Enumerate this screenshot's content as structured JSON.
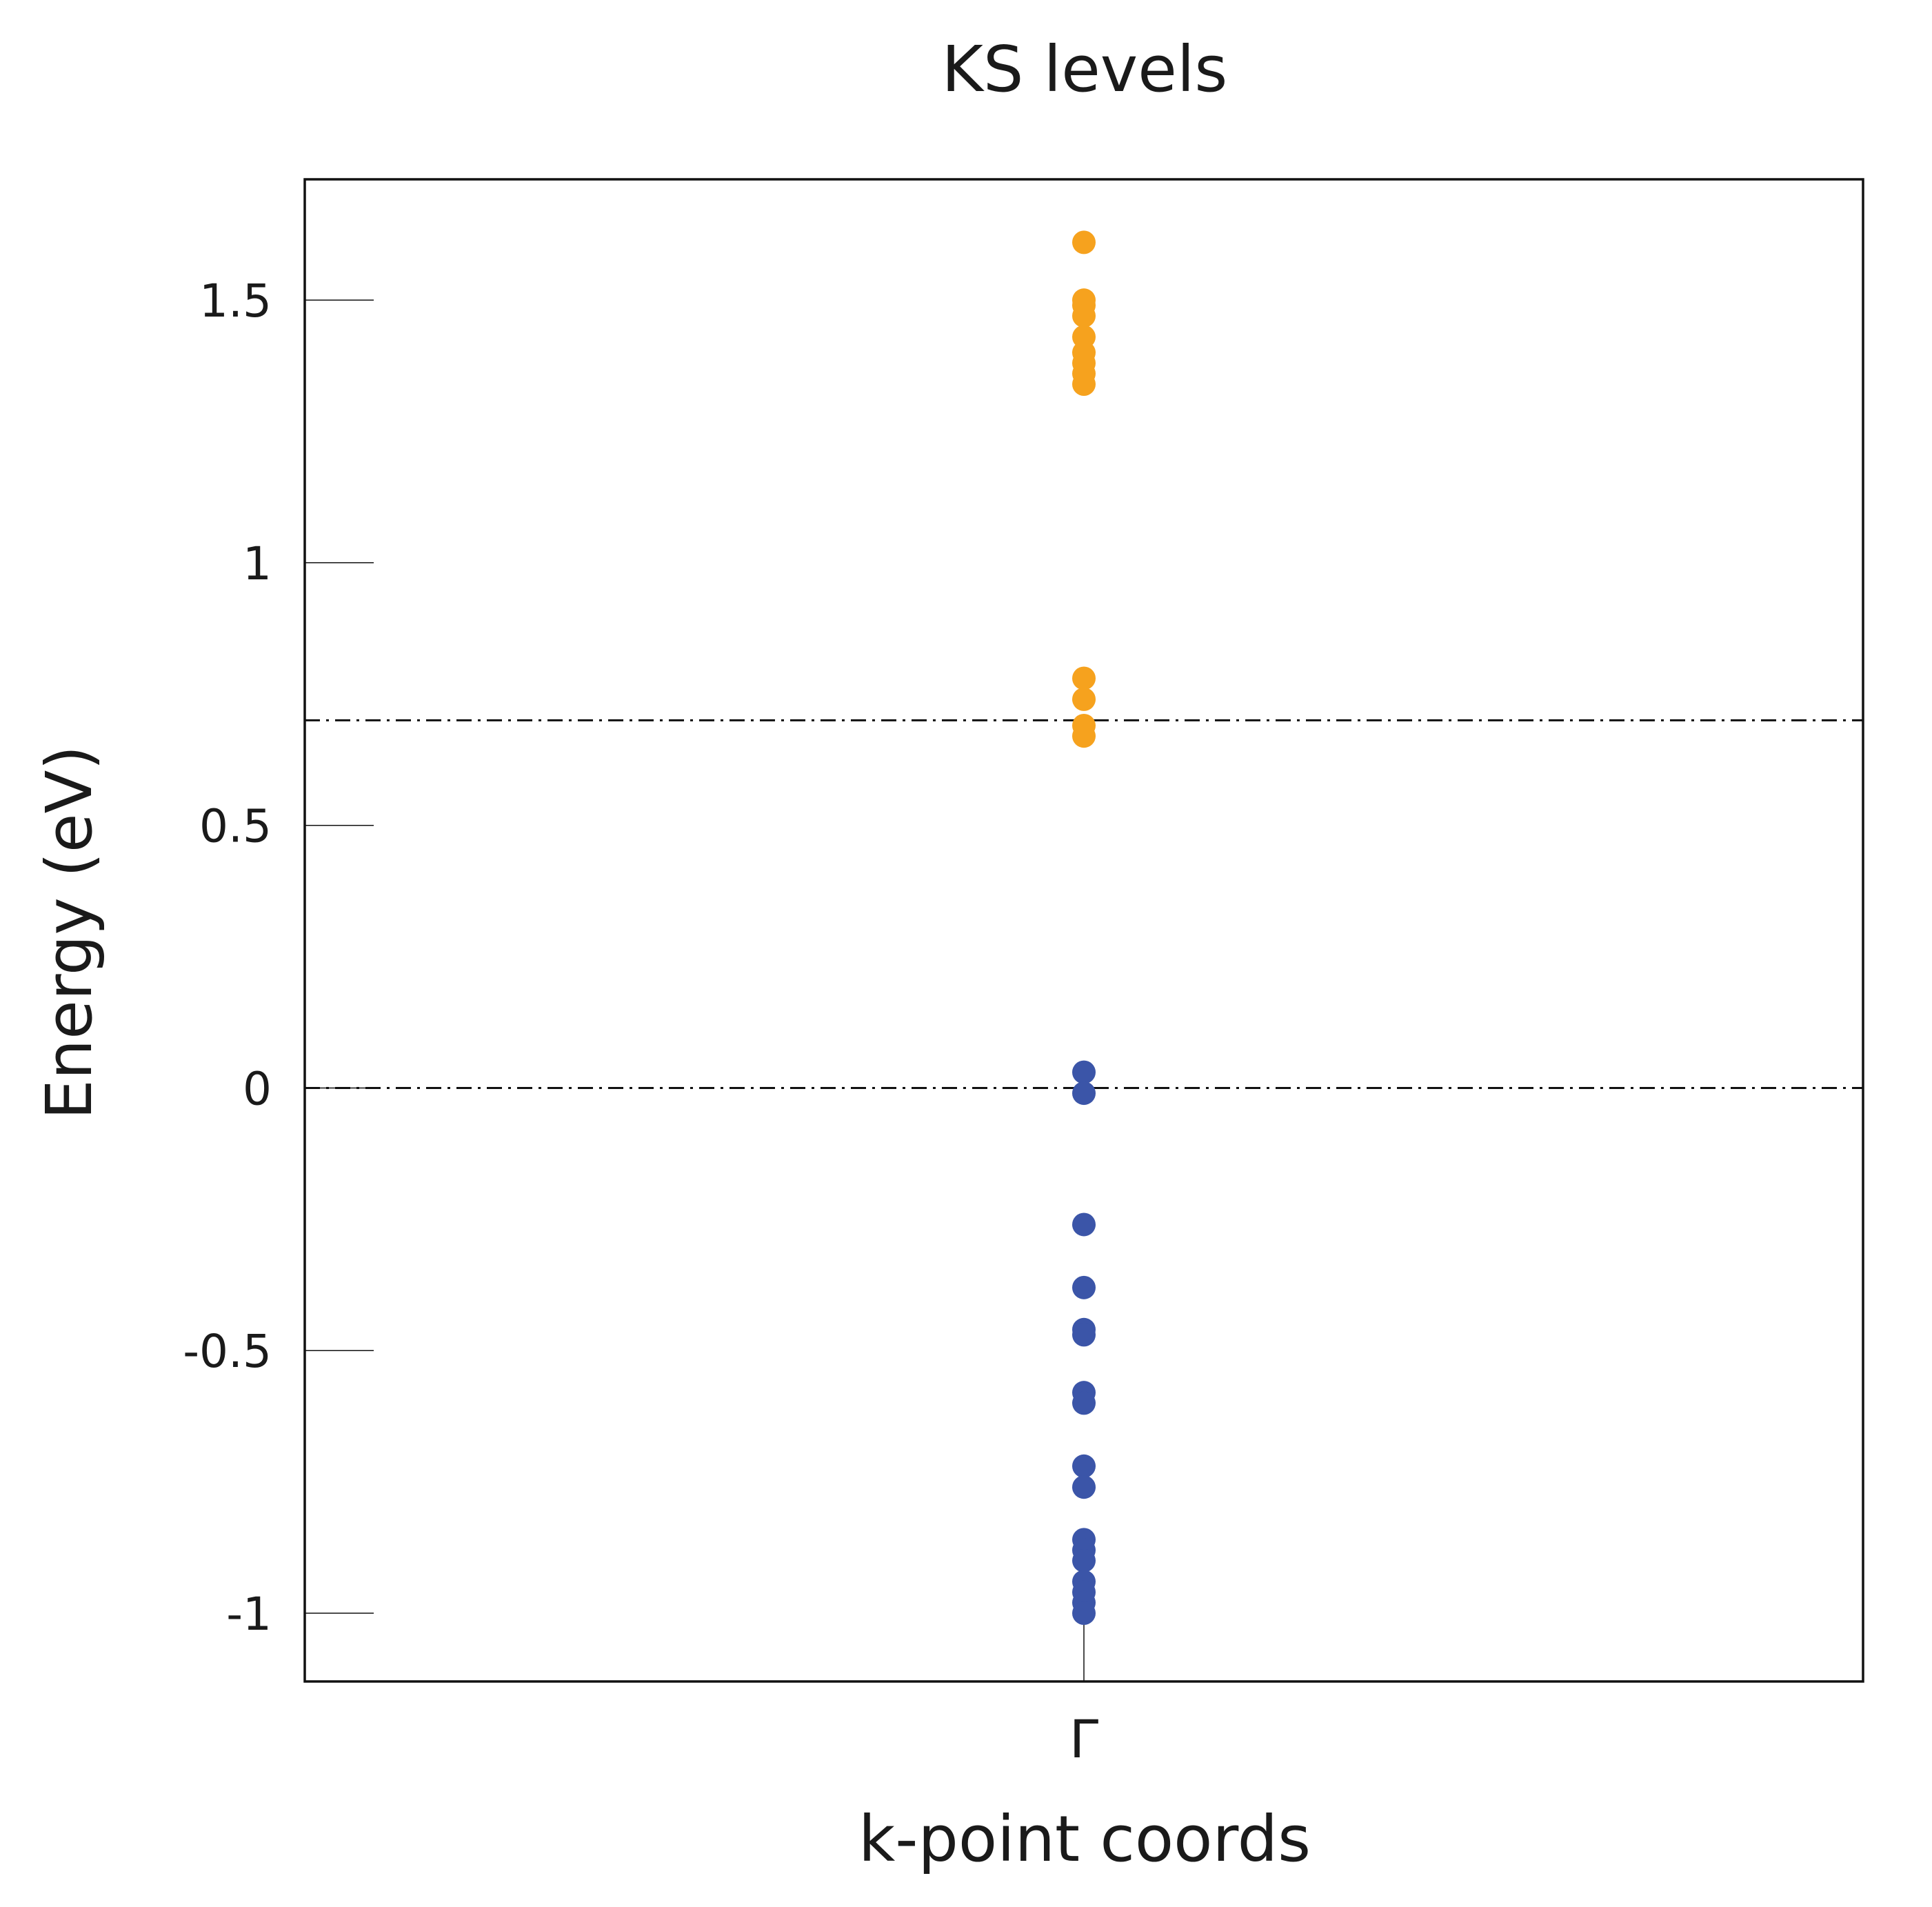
{
  "chart_data": {
    "type": "scatter",
    "title": "KS levels",
    "xlabel": "k-point coords",
    "ylabel": "Energy (eV)",
    "x_ticks": [
      "Γ"
    ],
    "ylim": [
      -1.13,
      1.73
    ],
    "y_ticks": [
      -1,
      -0.5,
      0,
      0.5,
      1,
      1.5
    ],
    "y_tick_labels": [
      "-1",
      "-0.5",
      "0",
      "0.5",
      "1",
      "1.5"
    ],
    "reference_lines": [
      0,
      0.7
    ],
    "grid": false,
    "legend": "none",
    "series": [
      {
        "color": "#f6a21e",
        "x": "Γ",
        "values": [
          1.61,
          1.5,
          1.49,
          1.47,
          1.43,
          1.4,
          1.38,
          1.36,
          1.34,
          0.78,
          0.74,
          0.69,
          0.67
        ]
      },
      {
        "color": "#3b55a8",
        "x": "Γ",
        "values": [
          0.03,
          -0.01,
          -0.26,
          -0.38,
          -0.46,
          -0.47,
          -0.58,
          -0.6,
          -0.72,
          -0.76,
          -0.86,
          -0.88,
          -0.9,
          -0.94,
          -0.96,
          -0.98,
          -1.0
        ]
      }
    ]
  }
}
